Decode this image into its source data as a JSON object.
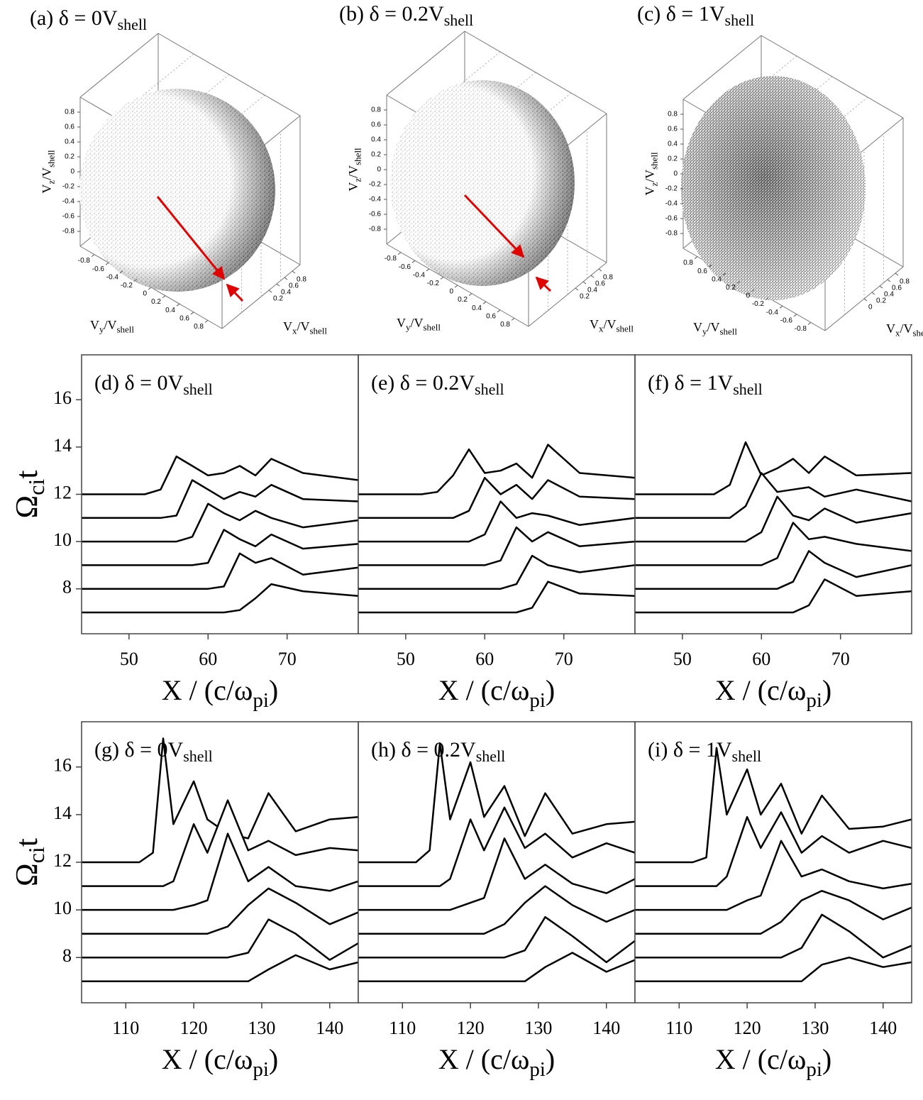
{
  "chart_data": [
    {
      "type": "scatter3d",
      "title": [
        "(a) δ = 0V",
        "shell"
      ],
      "xlabel": [
        "V",
        "x",
        "/V",
        "shell"
      ],
      "ylabel": [
        "V",
        "y",
        "/V",
        "shell"
      ],
      "zlabel": [
        "V",
        "z",
        "/V",
        "shell"
      ],
      "xlim": [
        -1,
        1
      ],
      "ylim": [
        -1,
        1
      ],
      "zlim": [
        -1,
        1
      ],
      "xticks": [
        0.2,
        0.4,
        0.6,
        0.8
      ],
      "yticks": [
        -0.8,
        -0.6,
        -0.4,
        -0.2,
        0,
        0.2,
        0.4,
        0.6,
        0.8
      ],
      "zticks": [
        -0.8,
        -0.6,
        -0.4,
        -0.2,
        0,
        0.2,
        0.4,
        0.6,
        0.8
      ]
    },
    {
      "type": "scatter3d",
      "title": [
        "(b) δ = 0.2V",
        "shell"
      ],
      "xlabel": [
        "V",
        "x",
        "/V",
        "shell"
      ],
      "ylabel": [
        "V",
        "y",
        "/V",
        "shell"
      ],
      "zlabel": [
        "V",
        "z",
        "/V",
        "shell"
      ],
      "xlim": [
        -1,
        1
      ],
      "ylim": [
        -1,
        1
      ],
      "zlim": [
        -1,
        1
      ],
      "xticks": [
        0.2,
        0.4,
        0.6,
        0.8
      ],
      "yticks": [
        -0.8,
        -0.6,
        -0.4,
        -0.2,
        0,
        0.2,
        0.4,
        0.6,
        0.8
      ],
      "zticks": [
        -0.8,
        -0.6,
        -0.4,
        -0.2,
        0,
        0.2,
        0.4,
        0.6,
        0.8
      ]
    },
    {
      "type": "scatter3d",
      "title": [
        "(c) δ = 1V",
        "shell"
      ],
      "xlabel": [
        "V",
        "x",
        "/V",
        "shell"
      ],
      "ylabel": [
        "V",
        "y",
        "/V",
        "shell"
      ],
      "zlabel": [
        "V",
        "z",
        "/V",
        "shell"
      ],
      "xlim": [
        -1,
        1
      ],
      "ylim": [
        1,
        -1
      ],
      "zlim": [
        -1,
        1
      ],
      "xticks": [
        0,
        0.2,
        0.4,
        0.6,
        0.8
      ],
      "yticks": [
        -0.8,
        -0.6,
        -0.4,
        -0.2,
        0,
        0.2,
        0.4,
        0.6,
        0.8
      ],
      "zticks": [
        -0.8,
        -0.6,
        -0.4,
        -0.2,
        0,
        0.2,
        0.4,
        0.6,
        0.8
      ]
    },
    {
      "type": "waterfall",
      "title": [
        "(d) δ = 0V",
        "shell"
      ],
      "xlabel": [
        "X / (c/ω",
        "pi",
        ")"
      ],
      "ylabel": [
        "Ω",
        "ci",
        "t"
      ],
      "color": "#000000",
      "xlim": [
        44,
        79
      ],
      "ylim": [
        6.1,
        17.9
      ],
      "xticks": [
        50,
        60,
        70
      ],
      "yticks": [
        8,
        10,
        12,
        14,
        16
      ],
      "x": [
        44,
        52,
        54,
        56,
        58,
        60,
        62,
        64,
        66,
        68,
        72,
        79
      ],
      "series": [
        {
          "values": [
            12,
            12,
            12.2,
            13.6,
            13.2,
            12.8,
            12.9,
            13.2,
            12.8,
            13.5,
            12.9,
            12.6
          ]
        },
        {
          "values": [
            11,
            11,
            11,
            11.1,
            12.6,
            12.2,
            11.8,
            12.1,
            11.9,
            12.4,
            11.8,
            11.7
          ]
        },
        {
          "values": [
            10,
            10,
            10,
            10,
            10.2,
            11.6,
            11.2,
            10.9,
            11.3,
            11.0,
            10.6,
            10.9
          ]
        },
        {
          "values": [
            9,
            9,
            9,
            9,
            9,
            9.1,
            10.5,
            10.1,
            9.8,
            10.3,
            9.7,
            9.9
          ]
        },
        {
          "values": [
            8,
            8,
            8,
            8,
            8,
            8,
            8.1,
            9.5,
            9.1,
            9.3,
            8.6,
            8.9
          ]
        },
        {
          "values": [
            7,
            7,
            7,
            7,
            7,
            7,
            7,
            7.1,
            7.6,
            8.2,
            7.9,
            7.7
          ]
        }
      ]
    },
    {
      "type": "waterfall",
      "title": [
        "(e) δ = 0.2V",
        "shell"
      ],
      "xlabel": [
        "X / (c/ω",
        "pi",
        ")"
      ],
      "color": "#000000",
      "xlim": [
        44,
        79
      ],
      "ylim": [
        6.1,
        17.9
      ],
      "xticks": [
        50,
        60,
        70
      ],
      "x": [
        44,
        52,
        54,
        56,
        58,
        60,
        62,
        64,
        66,
        68,
        72,
        79
      ],
      "series": [
        {
          "values": [
            12,
            12,
            12.1,
            12.8,
            13.9,
            12.9,
            13.0,
            13.3,
            12.7,
            14.1,
            12.9,
            12.7
          ]
        },
        {
          "values": [
            11,
            11,
            11,
            11,
            11.3,
            12.7,
            12.0,
            12.4,
            11.8,
            12.6,
            11.9,
            11.8
          ]
        },
        {
          "values": [
            10,
            10,
            10,
            10,
            10,
            10.3,
            11.7,
            11.0,
            11.2,
            11.1,
            10.7,
            11.0
          ]
        },
        {
          "values": [
            9,
            9,
            9,
            9,
            9,
            9,
            9.2,
            10.6,
            10.0,
            10.4,
            9.8,
            10.0
          ]
        },
        {
          "values": [
            8,
            8,
            8,
            8,
            8,
            8,
            8,
            8.2,
            9.4,
            9.0,
            8.7,
            9.0
          ]
        },
        {
          "values": [
            7,
            7,
            7,
            7,
            7,
            7,
            7,
            7,
            7.2,
            8.3,
            7.8,
            7.7
          ]
        }
      ]
    },
    {
      "type": "waterfall",
      "title": [
        "(f) δ = 1V",
        "shell"
      ],
      "xlabel": [
        "X / (c/ω",
        "pi",
        ")"
      ],
      "color": "#000000",
      "xlim": [
        44,
        79
      ],
      "ylim": [
        6.1,
        17.9
      ],
      "xticks": [
        50,
        60,
        70
      ],
      "x": [
        44,
        52,
        54,
        56,
        58,
        60,
        62,
        64,
        66,
        68,
        72,
        79
      ],
      "series": [
        {
          "values": [
            12,
            12,
            12,
            12.4,
            14.2,
            12.8,
            13.1,
            13.5,
            12.9,
            13.6,
            12.8,
            12.9
          ]
        },
        {
          "values": [
            11,
            11,
            11,
            11,
            11.5,
            12.9,
            12.1,
            12.2,
            12.3,
            11.9,
            12.2,
            11.7
          ]
        },
        {
          "values": [
            10,
            10,
            10,
            10,
            10,
            10.4,
            11.9,
            11.1,
            10.9,
            11.4,
            10.8,
            11.2
          ]
        },
        {
          "values": [
            9,
            9,
            9,
            9,
            9,
            9,
            9.3,
            10.8,
            10.1,
            10.2,
            9.9,
            9.6
          ]
        },
        {
          "values": [
            8,
            8,
            8,
            8,
            8,
            8,
            8,
            8.3,
            9.6,
            9.1,
            8.5,
            9.0
          ]
        },
        {
          "values": [
            7,
            7,
            7,
            7,
            7,
            7,
            7,
            7,
            7.3,
            8.4,
            7.7,
            7.9
          ]
        }
      ]
    },
    {
      "type": "waterfall",
      "title": [
        "(g) δ = 0V",
        "shell"
      ],
      "xlabel": [
        "X / (c/ω",
        "pi",
        ")"
      ],
      "ylabel": [
        "Ω",
        "ci",
        "t"
      ],
      "color": "#000000",
      "xlim": [
        103.5,
        144.2
      ],
      "ylim": [
        6.1,
        17.9
      ],
      "xticks": [
        110,
        120,
        130,
        140
      ],
      "yticks": [
        8,
        10,
        12,
        14,
        16
      ],
      "x": [
        103.5,
        112,
        114,
        115.5,
        117,
        120,
        122,
        125,
        128,
        131,
        135,
        140,
        144.2
      ],
      "series": [
        {
          "values": [
            12,
            12,
            12.4,
            17.2,
            13.6,
            15.4,
            13.8,
            13.2,
            13.0,
            14.9,
            13.3,
            13.8,
            13.9
          ]
        },
        {
          "values": [
            11,
            11,
            11,
            11,
            11.2,
            13.6,
            12.4,
            14.6,
            12.5,
            12.9,
            12.3,
            12.6,
            12.5
          ]
        },
        {
          "values": [
            10,
            10,
            10,
            10,
            10,
            10.2,
            10.4,
            13.2,
            11.2,
            11.8,
            11.0,
            10.8,
            11.2
          ]
        },
        {
          "values": [
            9,
            9,
            9,
            9,
            9,
            9,
            9,
            9.3,
            10.2,
            10.9,
            10.3,
            9.4,
            9.9
          ]
        },
        {
          "values": [
            8,
            8,
            8,
            8,
            8,
            8,
            8,
            8,
            8.2,
            9.6,
            9.0,
            7.9,
            8.6
          ]
        },
        {
          "values": [
            7,
            7,
            7,
            7,
            7,
            7,
            7,
            7,
            7,
            7.5,
            8.1,
            7.5,
            7.8
          ]
        }
      ]
    },
    {
      "type": "waterfall",
      "title": [
        "(h) δ = 0.2V",
        "shell"
      ],
      "xlabel": [
        "X / (c/ω",
        "pi",
        ")"
      ],
      "color": "#000000",
      "xlim": [
        103.5,
        144.2
      ],
      "ylim": [
        6.1,
        17.9
      ],
      "xticks": [
        110,
        120,
        130,
        140
      ],
      "x": [
        103.5,
        112,
        114,
        115.5,
        117,
        120,
        122,
        125,
        128,
        131,
        135,
        140,
        144.2
      ],
      "series": [
        {
          "values": [
            12,
            12,
            12.5,
            17.0,
            13.8,
            16.2,
            13.9,
            15.2,
            13.1,
            14.9,
            13.2,
            13.6,
            13.7
          ]
        },
        {
          "values": [
            11,
            11,
            11,
            11,
            11.3,
            13.8,
            12.5,
            14.3,
            12.6,
            13.2,
            12.2,
            12.8,
            12.4
          ]
        },
        {
          "values": [
            10,
            10,
            10,
            10,
            10,
            10.3,
            10.5,
            13.0,
            11.3,
            11.9,
            11.1,
            10.7,
            11.3
          ]
        },
        {
          "values": [
            9,
            9,
            9,
            9,
            9,
            9,
            9,
            9.4,
            10.3,
            11.0,
            10.2,
            9.5,
            10.0
          ]
        },
        {
          "values": [
            8,
            8,
            8,
            8,
            8,
            8,
            8,
            8,
            8.3,
            9.7,
            8.9,
            7.8,
            8.7
          ]
        },
        {
          "values": [
            7,
            7,
            7,
            7,
            7,
            7,
            7,
            7,
            7,
            7.6,
            8.2,
            7.4,
            7.9
          ]
        }
      ]
    },
    {
      "type": "waterfall",
      "title": [
        "(i) δ = 1V",
        "shell"
      ],
      "xlabel": [
        "X / (c/ω",
        "pi",
        ")"
      ],
      "color": "#000000",
      "xlim": [
        103.5,
        144.2
      ],
      "ylim": [
        6.1,
        17.9
      ],
      "xticks": [
        110,
        120,
        130,
        140
      ],
      "x": [
        103.5,
        112,
        114,
        115.5,
        117,
        120,
        122,
        125,
        128,
        131,
        135,
        140,
        144.2
      ],
      "series": [
        {
          "values": [
            12,
            12,
            12.2,
            16.8,
            14.0,
            15.9,
            14.0,
            15.3,
            13.2,
            14.8,
            13.4,
            13.5,
            13.8
          ]
        },
        {
          "values": [
            11,
            11,
            11,
            11,
            11.4,
            13.9,
            12.6,
            14.1,
            12.4,
            13.1,
            12.4,
            12.9,
            12.6
          ]
        },
        {
          "values": [
            10,
            10,
            10,
            10,
            10,
            10.4,
            10.6,
            12.9,
            11.4,
            11.7,
            11.2,
            10.9,
            11.1
          ]
        },
        {
          "values": [
            9,
            9,
            9,
            9,
            9,
            9,
            9,
            9.5,
            10.4,
            10.8,
            10.4,
            9.6,
            10.1
          ]
        },
        {
          "values": [
            8,
            8,
            8,
            8,
            8,
            8,
            8,
            8,
            8.4,
            9.8,
            9.1,
            8.0,
            8.5
          ]
        },
        {
          "values": [
            7,
            7,
            7,
            7,
            7,
            7,
            7,
            7,
            7,
            7.7,
            8.0,
            7.6,
            7.8
          ]
        }
      ]
    }
  ]
}
